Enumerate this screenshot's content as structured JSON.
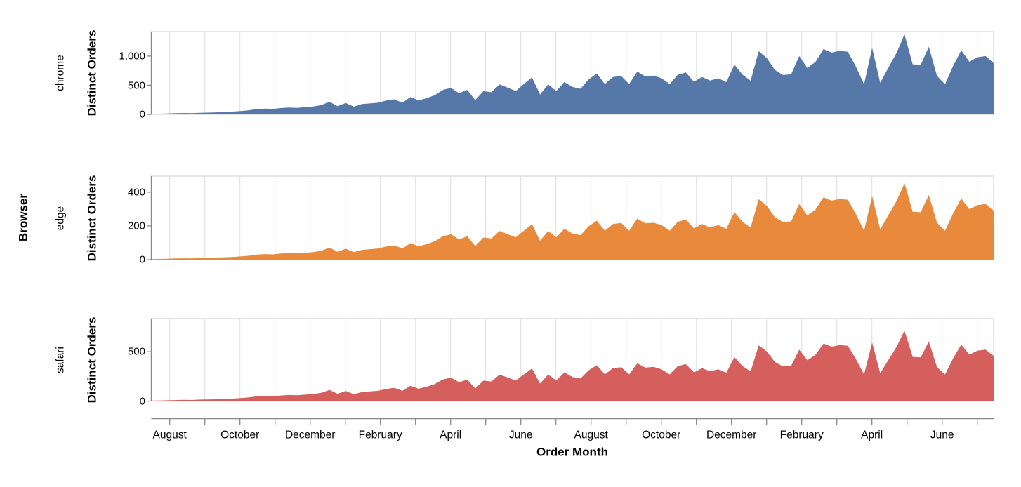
{
  "labels": {
    "facet_axis_title": "Browser",
    "x_axis_title": "Order Month",
    "y_axis_title": "Distinct Orders"
  },
  "chart_data": {
    "type": "area",
    "layout": "faceted-rows",
    "facet_field": "Browser",
    "x_title": "Order Month",
    "y_title": "Distinct Orders",
    "grid": true,
    "x_axis": {
      "months_total": 24,
      "tick_every": "month",
      "label_every": "2 months",
      "tick_labels": [
        "August",
        "October",
        "December",
        "February",
        "April",
        "June",
        "August",
        "October",
        "December",
        "February",
        "April",
        "June"
      ]
    },
    "x_note": "weekly points spanning ~2 years, mid-July of year 1 through late July of year 3",
    "colors": {
      "axis": "#888888",
      "grid": "#dddddd",
      "border": "#dddddd",
      "text": "#000000"
    },
    "rows": [
      {
        "facet": "chrome",
        "color": "#5578a8",
        "ymax": 1420,
        "yticks": [
          {
            "v": 0,
            "label": "0"
          },
          {
            "v": 500,
            "label": "500"
          },
          {
            "v": 1000,
            "label": "1,000"
          }
        ],
        "values": [
          8,
          12,
          16,
          20,
          24,
          22,
          28,
          30,
          35,
          42,
          48,
          58,
          70,
          90,
          100,
          95,
          108,
          118,
          112,
          125,
          136,
          160,
          217,
          140,
          196,
          132,
          177,
          188,
          200,
          237,
          257,
          200,
          298,
          240,
          278,
          330,
          420,
          455,
          365,
          420,
          245,
          398,
          380,
          515,
          458,
          400,
          520,
          635,
          340,
          515,
          400,
          555,
          470,
          440,
          600,
          699,
          520,
          640,
          660,
          520,
          735,
          650,
          665,
          620,
          520,
          680,
          720,
          560,
          640,
          580,
          620,
          554,
          855,
          680,
          578,
          1084,
          964,
          760,
          675,
          687,
          1000,
          795,
          900,
          1120,
          1060,
          1090,
          1075,
          819,
          518,
          1141,
          542,
          800,
          1050,
          1373,
          859,
          850,
          1161,
          662,
          518,
          830,
          1100,
          903,
          980,
          1000,
          880
        ]
      },
      {
        "facet": "edge",
        "color": "#e8893c",
        "ymax": 495,
        "yticks": [
          {
            "v": 0,
            "label": "0"
          },
          {
            "v": 200,
            "label": "200"
          },
          {
            "v": 400,
            "label": "400"
          }
        ],
        "values": [
          3,
          4,
          5,
          7,
          8,
          7,
          9,
          10,
          12,
          14,
          16,
          19,
          23,
          30,
          33,
          31,
          36,
          39,
          37,
          41,
          45,
          53,
          72,
          46,
          65,
          44,
          58,
          62,
          66,
          78,
          85,
          66,
          98,
          79,
          92,
          109,
          139,
          150,
          120,
          139,
          81,
          131,
          125,
          170,
          151,
          132,
          172,
          210,
          112,
          170,
          132,
          183,
          155,
          145,
          198,
          231,
          172,
          211,
          218,
          172,
          243,
          215,
          219,
          205,
          172,
          224,
          238,
          185,
          211,
          191,
          205,
          183,
          282,
          224,
          191,
          358,
          318,
          251,
          223,
          227,
          330,
          262,
          297,
          370,
          350,
          360,
          355,
          270,
          171,
          377,
          179,
          264,
          347,
          453,
          284,
          281,
          383,
          219,
          171,
          274,
          363,
          298,
          323,
          330,
          290
        ]
      },
      {
        "facet": "safari",
        "color": "#d45f5c",
        "ymax": 835,
        "yticks": [
          {
            "v": 0,
            "label": "0"
          },
          {
            "v": 500,
            "label": "500"
          }
        ],
        "values": [
          4,
          6,
          8,
          10,
          12,
          11,
          15,
          16,
          18,
          22,
          25,
          30,
          36,
          47,
          52,
          49,
          56,
          61,
          58,
          65,
          71,
          83,
          113,
          73,
          102,
          69,
          92,
          98,
          104,
          123,
          134,
          104,
          155,
          125,
          145,
          172,
          218,
          237,
          190,
          218,
          127,
          207,
          198,
          268,
          238,
          208,
          270,
          330,
          177,
          268,
          208,
          289,
          244,
          229,
          312,
          363,
          270,
          333,
          343,
          270,
          382,
          338,
          346,
          322,
          270,
          354,
          374,
          291,
          333,
          302,
          322,
          288,
          445,
          354,
          301,
          564,
          501,
          395,
          351,
          357,
          520,
          413,
          468,
          582,
          551,
          567,
          559,
          426,
          269,
          593,
          282,
          416,
          546,
          714,
          447,
          442,
          604,
          344,
          269,
          432,
          572,
          470,
          510,
          520,
          458
        ]
      }
    ]
  }
}
